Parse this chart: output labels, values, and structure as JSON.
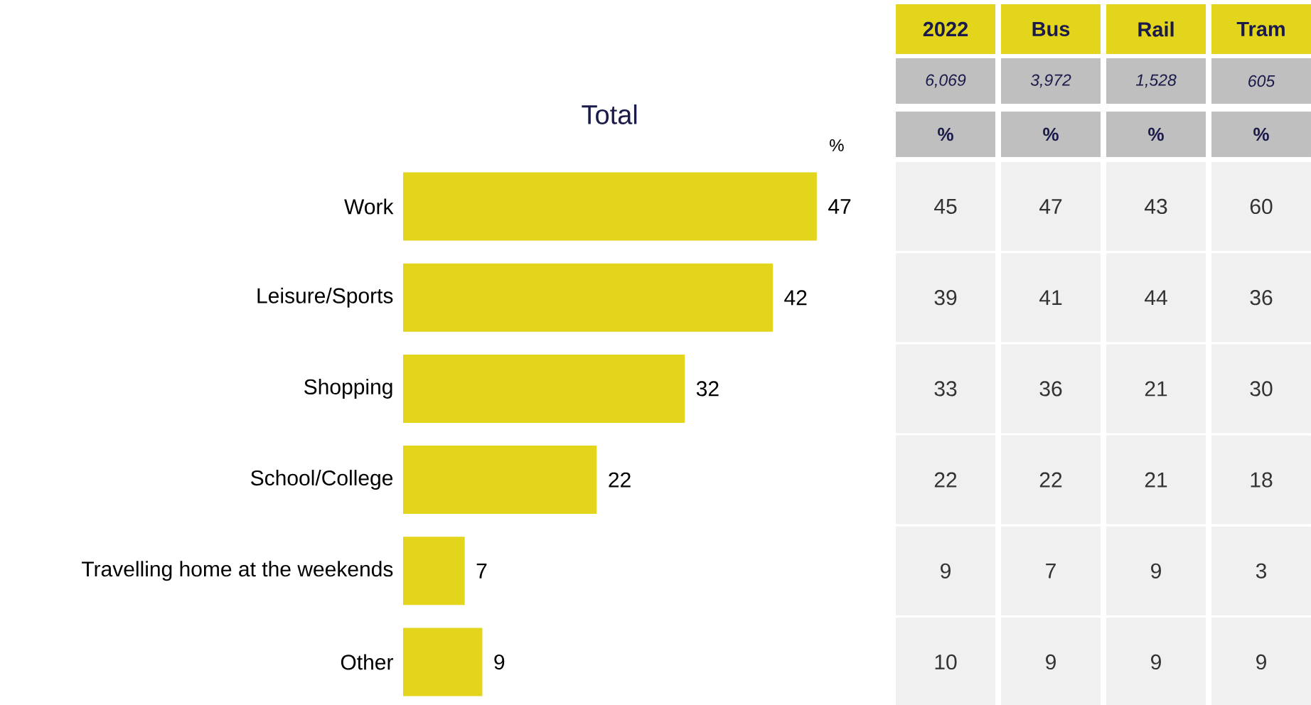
{
  "chart_data": [
    {
      "type": "bar",
      "orientation": "horizontal",
      "title": "Total",
      "categories": [
        "Work",
        "Leisure/Sports",
        "Shopping",
        "School/College",
        "Travelling home at the weekends",
        "Other"
      ],
      "values": [
        47,
        42,
        32,
        22,
        7,
        9
      ],
      "color": "#e3d51b",
      "data_labels": true,
      "annotations": [
        "%"
      ]
    },
    {
      "type": "other",
      "annotations": [
        "2022",
        "Bus",
        "Rail",
        "Tram",
        "6,069",
        "3,972",
        "1,528",
        "605",
        "%",
        "%",
        "%",
        "%",
        "45",
        "47",
        "43",
        "60",
        "39",
        "41",
        "44",
        "36",
        "33",
        "36",
        "21",
        "30",
        "22",
        "22",
        "21",
        "18",
        "9",
        "7",
        "9",
        "3",
        "10",
        "9",
        "9",
        "9"
      ]
    }
  ]
}
